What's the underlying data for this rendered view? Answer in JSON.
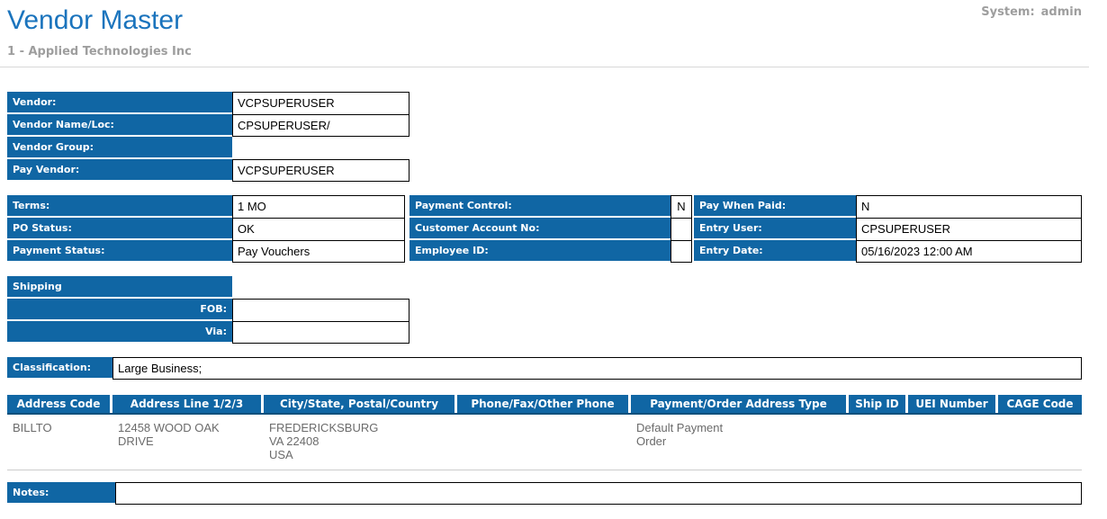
{
  "colors": {
    "label_blue": "#1066a4",
    "title_blue": "#1b74bd",
    "muted_gray": "#9e9e9e",
    "row_text_gray": "#6b6b6b",
    "header_underline": "#0e507c"
  },
  "header": {
    "title": "Vendor Master",
    "system_label": "System:",
    "system_value": "admin",
    "subtitle": "1 - Applied Technologies Inc"
  },
  "vendor_info": {
    "vendor_label": "Vendor:",
    "vendor_value": "VCPSUPERUSER",
    "vendor_name_loc_label": "Vendor Name/Loc:",
    "vendor_name_loc_value": "CPSUPERUSER/",
    "vendor_group_label": "Vendor Group:",
    "pay_vendor_label": "Pay Vendor:",
    "pay_vendor_value": "VCPSUPERUSER"
  },
  "terms_block": {
    "terms_label": "Terms:",
    "terms_value": "1 MO",
    "po_status_label": "PO Status:",
    "po_status_value": "OK",
    "payment_status_label": "Payment Status:",
    "payment_status_value": "Pay Vouchers",
    "payment_control_label": "Payment Control:",
    "payment_control_value": "N",
    "customer_account_no_label": "Customer Account No:",
    "customer_account_no_value": "",
    "employee_id_label": "Employee ID:",
    "employee_id_value": "",
    "pay_when_paid_label": "Pay When Paid:",
    "pay_when_paid_value": "N",
    "entry_user_label": "Entry User:",
    "entry_user_value": "CPSUPERUSER",
    "entry_date_label": "Entry Date:",
    "entry_date_value": "05/16/2023 12:00 AM"
  },
  "shipping": {
    "header_label": "Shipping",
    "fob_label": "FOB:",
    "fob_value": "",
    "via_label": "Via:",
    "via_value": ""
  },
  "classification": {
    "label": "Classification:",
    "value": "Large Business;"
  },
  "address_table": {
    "headers": [
      "Address Code",
      "Address Line 1/2/3",
      "City/State, Postal/Country",
      "Phone/Fax/Other Phone",
      "Payment/Order Address Type",
      "Ship ID",
      "UEI Number",
      "CAGE Code"
    ],
    "rows": [
      {
        "address_code": "BILLTO",
        "address_line": "12458 WOOD OAK DRIVE",
        "city_state": [
          "FREDERICKSBURG",
          "VA 22408",
          "USA"
        ],
        "phone": "",
        "payment_order_type": [
          "Default Payment",
          "Order"
        ],
        "ship_id": "",
        "uei_number": "",
        "cage_code": ""
      }
    ]
  },
  "notes": {
    "label": "Notes:",
    "value": ""
  }
}
